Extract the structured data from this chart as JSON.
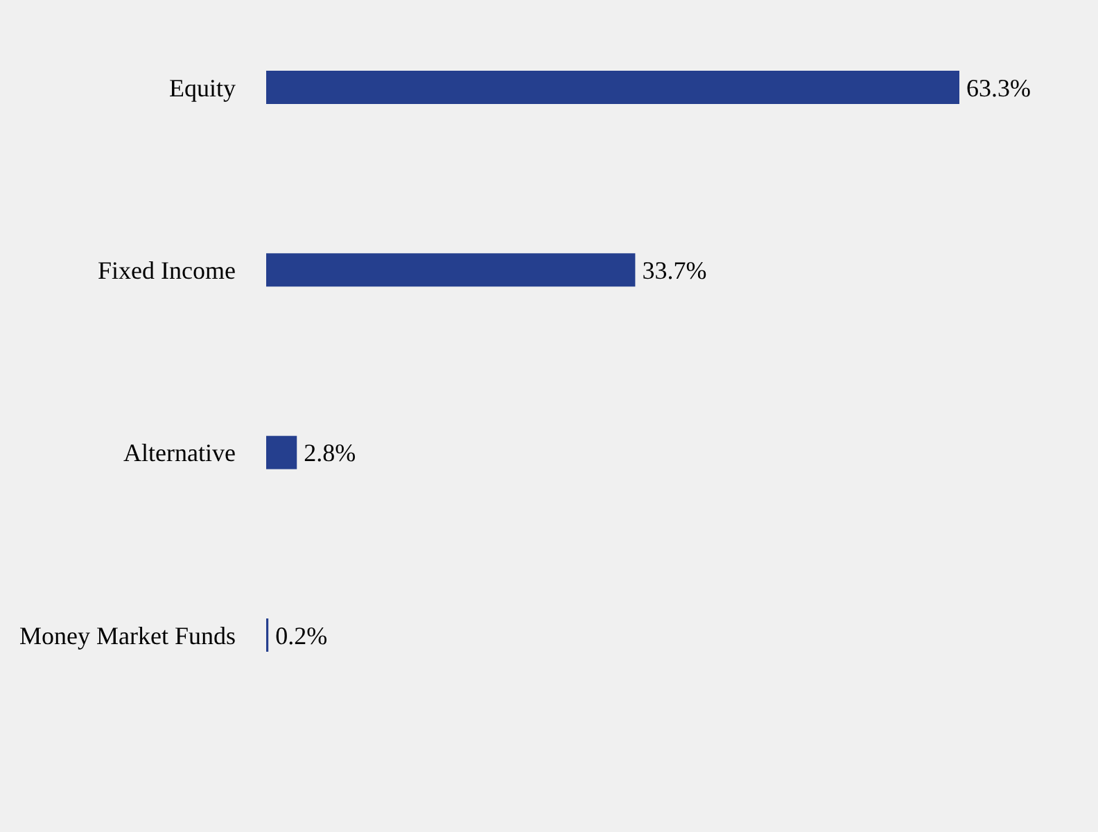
{
  "chart_data": {
    "type": "bar",
    "orientation": "horizontal",
    "categories": [
      "Equity",
      "Fixed Income",
      "Alternative",
      "Money Market Funds"
    ],
    "values": [
      63.3,
      33.7,
      2.8,
      0.2
    ],
    "value_labels": [
      "63.3%",
      "33.7%",
      "2.8%",
      "0.2%"
    ],
    "color": "#253f8e",
    "tick_labels": "y"
  }
}
